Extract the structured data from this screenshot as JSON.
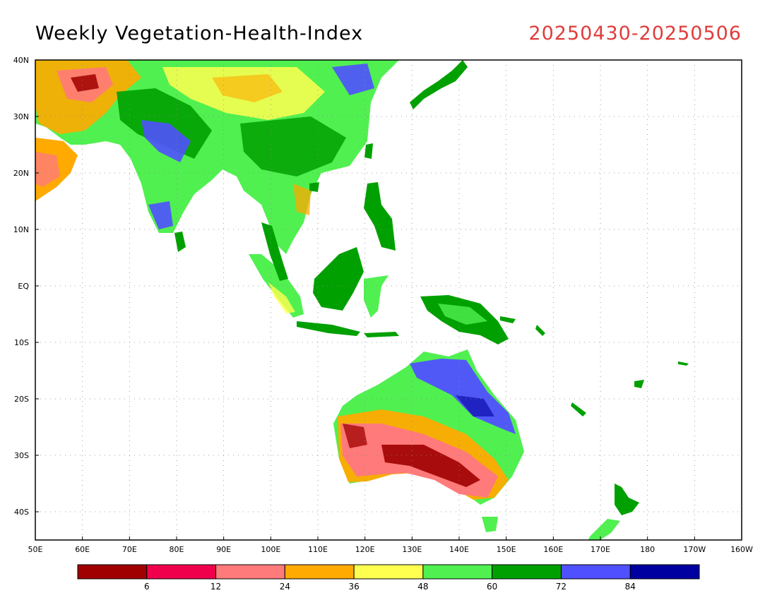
{
  "title": "Weekly Vegetation-Health-Index",
  "date_range": "20250430-20250506",
  "map": {
    "lon_range": [
      50,
      200
    ],
    "lat_range": [
      -45,
      40
    ],
    "lat_ticks": [
      {
        "value": 40,
        "label": "40N"
      },
      {
        "value": 30,
        "label": "30N"
      },
      {
        "value": 20,
        "label": "20N"
      },
      {
        "value": 10,
        "label": "10N"
      },
      {
        "value": 0,
        "label": "EQ"
      },
      {
        "value": -10,
        "label": "10S"
      },
      {
        "value": -20,
        "label": "20S"
      },
      {
        "value": -30,
        "label": "30S"
      },
      {
        "value": -40,
        "label": "40S"
      }
    ],
    "lon_ticks": [
      {
        "value": 50,
        "label": "50E"
      },
      {
        "value": 60,
        "label": "60E"
      },
      {
        "value": 70,
        "label": "70E"
      },
      {
        "value": 80,
        "label": "80E"
      },
      {
        "value": 90,
        "label": "90E"
      },
      {
        "value": 100,
        "label": "100E"
      },
      {
        "value": 110,
        "label": "110E"
      },
      {
        "value": 120,
        "label": "120E"
      },
      {
        "value": 130,
        "label": "130E"
      },
      {
        "value": 140,
        "label": "140E"
      },
      {
        "value": 150,
        "label": "150E"
      },
      {
        "value": 160,
        "label": "160E"
      },
      {
        "value": 170,
        "label": "170E"
      },
      {
        "value": 180,
        "label": "180"
      },
      {
        "value": 190,
        "label": "170W"
      },
      {
        "value": 200,
        "label": "160W"
      }
    ],
    "grid": "dotted"
  },
  "colorbar": {
    "colors": [
      "#a00000",
      "#f0004c",
      "#ff7a7a",
      "#ffaa00",
      "#ffff50",
      "#50f050",
      "#00a000",
      "#5050ff",
      "#0000a0"
    ],
    "labels": [
      "6",
      "12",
      "24",
      "36",
      "48",
      "60",
      "72",
      "84"
    ]
  }
}
